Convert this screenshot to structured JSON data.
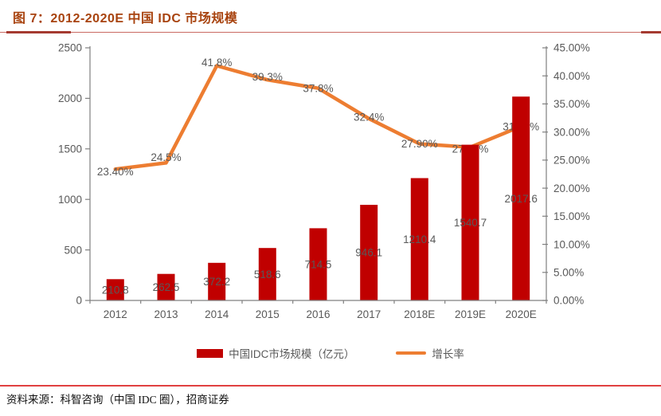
{
  "figure": {
    "title": "图 7：2012-2020E 中国 IDC 市场规模",
    "source": "资料来源：科智咨询（中国 IDC 圈），招商证券"
  },
  "chart_data": {
    "type": "combo: bar + line (dual axis)",
    "title": "图 7：2012-2020E 中国 IDC 市场规模",
    "categories": [
      "2012",
      "2013",
      "2014",
      "2015",
      "2016",
      "2017",
      "2018E",
      "2019E",
      "2020E"
    ],
    "series": [
      {
        "name": "中国IDC市场规模（亿元）",
        "type": "bar",
        "axis": "left",
        "color": "#C00000",
        "values": [
          210.8,
          262.5,
          372.2,
          518.6,
          714.5,
          946.1,
          1210.4,
          1540.7,
          2017.6
        ],
        "labels": [
          "210.8",
          "262.5",
          "372.2",
          "518.6",
          "714.5",
          "946.1",
          "1210.4",
          "1540.7",
          "2017.6"
        ]
      },
      {
        "name": "增长率",
        "type": "line",
        "axis": "right",
        "color": "#ED7D31",
        "values": [
          23.4,
          24.5,
          41.8,
          39.3,
          37.8,
          32.4,
          27.9,
          27.3,
          31.0
        ],
        "labels": [
          "23.40%",
          "24.5%",
          "41.8%",
          "39.3%",
          "37.8%",
          "32.4%",
          "27.90%",
          "27.30%",
          "31.00%"
        ]
      }
    ],
    "left_axis": {
      "min": 0,
      "max": 2500,
      "step": 500,
      "tick_labels": [
        "0",
        "500",
        "1000",
        "1500",
        "2000",
        "2500"
      ]
    },
    "right_axis": {
      "min": 0,
      "max": 45,
      "step": 5,
      "tick_labels": [
        "0.00%",
        "5.00%",
        "10.00%",
        "15.00%",
        "20.00%",
        "25.00%",
        "30.00%",
        "35.00%",
        "40.00%",
        "45.00%"
      ]
    },
    "grid": false,
    "legend_position": "bottom",
    "colors": {
      "bar": "#C00000",
      "line": "#ED7D31",
      "axis": "#808080",
      "tick_label": "#595959",
      "data_label": "#595959",
      "title": "#A8430F",
      "rule_top_thin": "#C96A62",
      "rule_top_thick": "#A53A30",
      "rule_bottom": "#E04040"
    }
  }
}
